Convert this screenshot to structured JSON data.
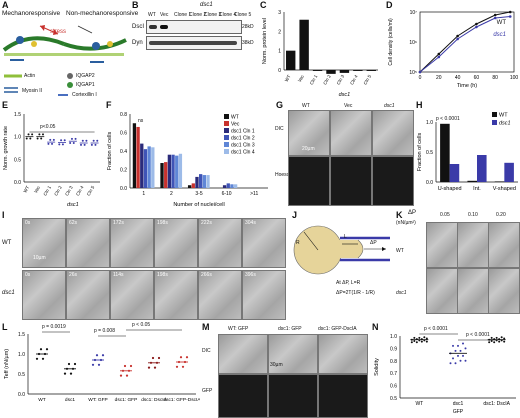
{
  "panels": {
    "A": {
      "label": "A",
      "left_title": "Mechanoresponsive",
      "right_title": "Non-mechanoresponsive",
      "stress": "stress",
      "legend": [
        "Actin",
        "IQGAP2",
        "IQGAP1",
        "Myosin II",
        "Cortexillin I"
      ]
    },
    "B": {
      "label": "B",
      "header": "dsc1",
      "lanes": [
        "WT",
        "Vec",
        "Clone 1",
        "Clone 2",
        "Clone 3",
        "Clone 4",
        "Clone 5"
      ],
      "rows": [
        {
          "name": "DscI",
          "mw": "28kD"
        },
        {
          "name": "Dyn",
          "mw": "38kD"
        }
      ]
    },
    "C": {
      "label": "C"
    },
    "D": {
      "label": "D"
    },
    "E": {
      "label": "E",
      "pval": "p<0.05"
    },
    "F": {
      "label": "F",
      "ns": "ns"
    },
    "G": {
      "label": "G",
      "cols": [
        "WT",
        "Vec",
        "dsc1"
      ],
      "rows": [
        "DIC",
        "Hoescht"
      ],
      "scale": "20µm"
    },
    "H": {
      "label": "H",
      "pval": "p < 0.0001"
    },
    "I": {
      "label": "I",
      "rows": [
        {
          "name": "WT",
          "times": [
            "0s",
            "62s",
            "172s",
            "198s",
            "222s",
            "304s"
          ]
        },
        {
          "name": "dsc1",
          "times": [
            "0s",
            "26s",
            "114s",
            "198s",
            "266s",
            "396s"
          ]
        }
      ],
      "scale": "10µm"
    },
    "J": {
      "label": "J",
      "rc": "R",
      "rp": "R",
      "lp": "L",
      "dp": "ΔP",
      "eq1": "At ΔP",
      "eq1b": ", L",
      "eq1c": "=R",
      "eq2": "ΔP",
      "eq2b": "=2T",
      "eq2c": "(1/R",
      "eq2d": " - 1/R",
      "eq2e": ")"
    },
    "K": {
      "label": "K",
      "ylabel": "ΔP",
      "units": "(nN/µm²)",
      "pressures": [
        "0.05",
        "0.10",
        "0.20"
      ],
      "rows": [
        "WT",
        "dsc1"
      ]
    },
    "L": {
      "label": "L",
      "pvals": [
        "p = 0.0019",
        "p = 0.008",
        "p < 0.05"
      ],
      "xlabels": [
        "WT",
        "dsc1",
        "WT: GFP",
        "dsc1: GFP",
        "dsc1: DscIA",
        "dsc1: GFP-DscIA"
      ]
    },
    "M": {
      "label": "M",
      "cols": [
        "WT: GFP",
        "dsc1: GFP",
        "dsc1: GFP-DscIA"
      ],
      "rows": [
        "DIC",
        "GFP"
      ],
      "scale": "30µm"
    },
    "N": {
      "label": "N",
      "pvals": [
        "p < 0.0001",
        "p < 0.0001"
      ],
      "xlabels": [
        "WT",
        "dsc1",
        "dsc1: DscIA"
      ],
      "sub": "GFP"
    }
  },
  "chart_data": [
    {
      "panel": "C",
      "type": "bar",
      "ylabel": "Norm. protein level",
      "ylim": [
        0,
        3
      ],
      "categories": [
        "WT",
        "Vec",
        "Cln 1",
        "Cln 2",
        "Cln 3",
        "Cln 4",
        "Cln 5"
      ],
      "values": [
        1.0,
        2.6,
        -0.05,
        -0.2,
        -0.15,
        -0.05,
        -0.05
      ],
      "yticks": [
        "0",
        "1",
        "2",
        "3"
      ],
      "group": "dsc1"
    },
    {
      "panel": "D",
      "type": "line",
      "xlabel": "Time (h)",
      "ylabel": "Cell density (cells/ml)",
      "xticks": [
        "0",
        "20",
        "40",
        "60",
        "80",
        "100"
      ],
      "yticks": [
        "10⁵",
        "10⁶",
        "10⁷"
      ],
      "series": [
        {
          "name": "WT",
          "color": "#111111",
          "x": [
            0,
            20,
            40,
            60,
            80,
            96
          ],
          "y": [
            5.0,
            5.6,
            6.2,
            6.6,
            6.9,
            7.0
          ]
        },
        {
          "name": "dsc1",
          "color": "#3a3aa8",
          "x": [
            0,
            20,
            40,
            60,
            80,
            96
          ],
          "y": [
            5.0,
            5.5,
            6.1,
            6.5,
            6.8,
            6.85
          ]
        }
      ]
    },
    {
      "panel": "E",
      "type": "scatter",
      "ylabel": "Norm. growth rate",
      "ylim": [
        0,
        1.5
      ],
      "yticks": [
        "0.0",
        "0.5",
        "1.0",
        "1.5"
      ],
      "categories": [
        "WT",
        "Vec",
        "Cln 1",
        "Cln 2",
        "Cln 3",
        "Cln 4",
        "Cln 5"
      ],
      "group": "dsc1"
    },
    {
      "panel": "F",
      "type": "bar",
      "ylabel": "Fraction of cells",
      "xlabel": "Number of nuclei/cell",
      "categories": [
        "1",
        "2",
        "3-5",
        "6-10",
        ">11"
      ],
      "yticks": [
        "0.0",
        "0.2",
        "0.4",
        "0.6",
        "0.8"
      ],
      "series": [
        {
          "name": "WT",
          "color": "#111111",
          "values": [
            0.7,
            0.27,
            0.03,
            0.0,
            0.0
          ]
        },
        {
          "name": "Vec",
          "color": "#c8322e",
          "values": [
            0.66,
            0.28,
            0.05,
            0.0,
            0.0
          ]
        },
        {
          "name": "dsc1 Cln 1",
          "color": "#2b2b7a",
          "values": [
            0.48,
            0.36,
            0.12,
            0.03,
            0.0
          ]
        },
        {
          "name": "dsc1 Cln 2",
          "color": "#3f54b6",
          "values": [
            0.42,
            0.36,
            0.15,
            0.05,
            0.0
          ]
        },
        {
          "name": "dsc1 Cln 3",
          "color": "#5f86d6",
          "values": [
            0.45,
            0.35,
            0.14,
            0.04,
            0.0
          ]
        },
        {
          "name": "dsc1 Cln 4",
          "color": "#9dbbe8",
          "values": [
            0.44,
            0.37,
            0.14,
            0.04,
            0.0
          ]
        }
      ]
    },
    {
      "panel": "H",
      "type": "bar",
      "ylabel": "Fraction of cells",
      "ylim": [
        0,
        1.0
      ],
      "yticks": [
        "0.0",
        "0.5",
        "1.0"
      ],
      "categories": [
        "U-shaped",
        "Int.",
        "V-shaped"
      ],
      "series": [
        {
          "name": "WT",
          "color": "#111111",
          "values": [
            0.97,
            0.02,
            0.01
          ]
        },
        {
          "name": "dsc1",
          "color": "#3a3aa8",
          "values": [
            0.3,
            0.45,
            0.32
          ]
        }
      ]
    },
    {
      "panel": "L",
      "type": "scatter",
      "ylabel": "T",
      "ylabel_sub": "eff",
      "ylabel_units": "(nN/µm)",
      "ylim": [
        0,
        1.5
      ],
      "yticks": [
        "0.0",
        "0.5",
        "1.0",
        "1.5"
      ]
    },
    {
      "panel": "N",
      "type": "scatter",
      "ylabel": "Solidity",
      "ylim": [
        0.5,
        1.0
      ],
      "yticks": [
        "0.5",
        "0.6",
        "0.7",
        "0.8",
        "0.9",
        "1.0"
      ]
    }
  ]
}
